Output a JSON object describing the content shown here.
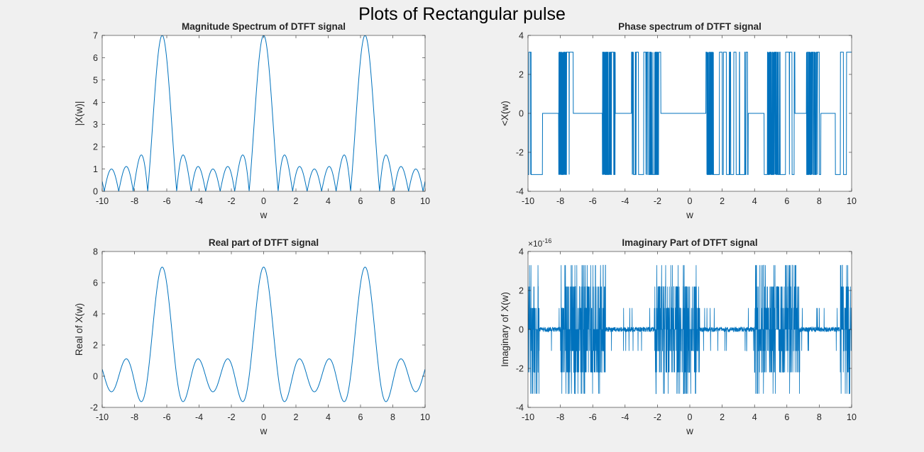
{
  "figure": {
    "suptitle": "Plots of Rectangular pulse"
  },
  "colors": {
    "line": "#0072bd",
    "axes_bg": "#ffffff",
    "figure_bg": "#f0f0f0",
    "axis": "#262626"
  },
  "chart_data": [
    {
      "type": "line",
      "title": "Magnitude Spectrum of DTFT signal",
      "xlabel": "w",
      "ylabel": "|X(w)|",
      "xlim": [
        -10,
        10
      ],
      "ylim": [
        0,
        7
      ],
      "xticks": [
        -10,
        -8,
        -6,
        -4,
        -2,
        0,
        2,
        4,
        6,
        8,
        10
      ],
      "yticks": [
        0,
        1,
        2,
        3,
        4,
        5,
        6,
        7
      ],
      "series": [
        {
          "function": "abs(sin(3.5*w)/sin(w/2))",
          "x": [
            -10,
            -9.5,
            -9,
            -8.5,
            -8,
            -7.5,
            -7,
            -6.5,
            -6,
            -5.5,
            -5,
            -4.5,
            -4,
            -3.5,
            -3,
            -2.5,
            -2,
            -1.5,
            -1,
            -0.5,
            0,
            0.5,
            1,
            1.5,
            2,
            2.5,
            3,
            3.5,
            4,
            4.5,
            5,
            5.5,
            6,
            6.5,
            7,
            7.5,
            8,
            8.5,
            9,
            9.5,
            10
          ],
          "y": [
            0.46,
            0.66,
            0.01,
            1.07,
            0.44,
            0.29,
            0.91,
            6.89,
            6.06,
            1.66,
            1.51,
            0.6,
            0.94,
            0.89,
            0.88,
            0.46,
            0.78,
            1.43,
            0.78,
            4.2,
            7,
            4.2,
            0.78,
            1.43,
            0.78,
            0.46,
            0.88,
            0.89,
            0.94,
            0.6,
            1.51,
            1.66,
            6.06,
            6.89,
            0.91,
            0.29,
            0.44,
            1.07,
            0.01,
            0.66,
            0.46
          ]
        }
      ],
      "grid": false
    },
    {
      "type": "line",
      "title": "Phase spectrum of DTFT signal",
      "xlabel": "w",
      "ylabel": "<X(w)",
      "xlim": [
        -10,
        10
      ],
      "ylim": [
        -4,
        4
      ],
      "xticks": [
        -10,
        -8,
        -6,
        -4,
        -2,
        0,
        2,
        4,
        6,
        8,
        10
      ],
      "yticks": [
        -4,
        -2,
        0,
        2,
        4
      ],
      "series": [
        {
          "levels": [
            -3.14,
            0,
            3.14
          ],
          "zero_phase_intervals": [
            [
              -9.1,
              -8.1
            ],
            [
              -7.2,
              -5.4
            ],
            [
              -4.6,
              -3.6
            ],
            [
              -1.8,
              1.0
            ],
            [
              3.6,
              4.6
            ],
            [
              6.5,
              7.2
            ],
            [
              8.1,
              9.0
            ]
          ],
          "switching_intervals": [
            [
              -10,
              -9.1
            ],
            [
              -8.1,
              -7.2
            ],
            [
              -5.4,
              -4.6
            ],
            [
              -3.6,
              -1.8
            ],
            [
              1.0,
              3.6
            ],
            [
              4.6,
              6.5
            ],
            [
              7.2,
              8.1
            ],
            [
              9.0,
              10
            ]
          ],
          "heavy_switching_intervals": [
            [
              -8.2,
              -7.6
            ],
            [
              -5.5,
              -4.8
            ],
            [
              -2.7,
              -1.9
            ],
            [
              0.9,
              1.5
            ],
            [
              4.8,
              5.5
            ],
            [
              7.2,
              7.8
            ]
          ]
        }
      ],
      "grid": false
    },
    {
      "type": "line",
      "title": "Real part of DTFT signal",
      "xlabel": "w",
      "ylabel": "Real of X(w)",
      "xlim": [
        -10,
        10
      ],
      "ylim": [
        -2,
        8
      ],
      "xticks": [
        -10,
        -8,
        -6,
        -4,
        -2,
        0,
        2,
        4,
        6,
        8,
        10
      ],
      "yticks": [
        -2,
        0,
        2,
        4,
        6,
        8
      ],
      "series": [
        {
          "function": "sin(3.5*w)/sin(w/2)",
          "x": [
            -10,
            -9,
            -8.5,
            -8,
            -7,
            -6.28,
            -5.5,
            -5,
            -4,
            -3,
            -2.2,
            -1.5,
            0,
            1.5,
            2.2,
            3,
            4,
            5,
            5.5,
            6.28,
            7,
            8,
            8.5,
            9,
            10
          ],
          "y": [
            0.46,
            -0.01,
            1.07,
            0.44,
            -0.91,
            7,
            1.66,
            -1.51,
            0.94,
            -0.88,
            1.1,
            -1.43,
            7,
            -1.43,
            1.1,
            -0.88,
            0.94,
            -1.51,
            1.66,
            7,
            -0.91,
            0.44,
            1.07,
            -0.01,
            0.46
          ]
        }
      ],
      "grid": false
    },
    {
      "type": "line",
      "title": "Imaginary Part of DTFT signal",
      "xlabel": "w",
      "ylabel": "Imaginary of X(w)",
      "xlim": [
        -10,
        10
      ],
      "ylim": [
        -4e-16,
        4e-16
      ],
      "yticks": [
        -4,
        -2,
        0,
        2,
        4
      ],
      "y_exponent": "-16",
      "y_exponent_prefix": "×10",
      "xticks": [
        -10,
        -8,
        -6,
        -4,
        -2,
        0,
        2,
        4,
        6,
        8,
        10
      ],
      "series": [
        {
          "description_levels_e16": [
            -3.3,
            -2.2,
            -1.1,
            0,
            1.1,
            2.2,
            3.3
          ],
          "noise_clusters": [
            [
              -10,
              -9.3
            ],
            [
              -8,
              -5.2
            ],
            [
              -2.2,
              0.6
            ],
            [
              4,
              6.8
            ],
            [
              9.3,
              10
            ]
          ]
        }
      ],
      "grid": false
    }
  ]
}
